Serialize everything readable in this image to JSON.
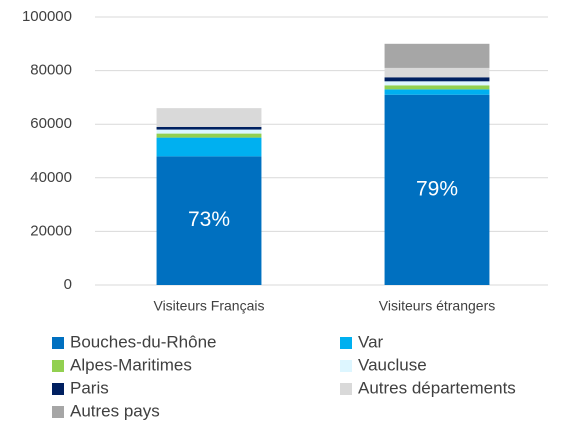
{
  "chart_data": {
    "type": "stacked_bar",
    "categories": [
      "Visiteurs Français",
      "Visiteurs étrangers"
    ],
    "series": [
      {
        "name": "Bouches-du-Rhône",
        "color": "#0070c0",
        "values": [
          48000,
          71000
        ]
      },
      {
        "name": "Var",
        "color": "#00b0f0",
        "values": [
          7000,
          2000
        ]
      },
      {
        "name": "Alpes-Maritimes",
        "color": "#92d050",
        "values": [
          1500,
          1500
        ]
      },
      {
        "name": "Vaucluse",
        "color": "#ddf6ff",
        "values": [
          1500,
          1500
        ]
      },
      {
        "name": "Paris",
        "color": "#002060",
        "values": [
          1000,
          1500
        ]
      },
      {
        "name": "Autres départements",
        "color": "#d9d9d9",
        "values": [
          7000,
          3500
        ]
      },
      {
        "name": "Autres pays",
        "color": "#a6a6a6",
        "values": [
          0,
          9000
        ]
      }
    ],
    "annotations": [
      "73%",
      "79%"
    ],
    "ylim": [
      0,
      100000
    ],
    "yticks": [
      0,
      20000,
      40000,
      60000,
      80000,
      100000
    ],
    "grid": true
  }
}
